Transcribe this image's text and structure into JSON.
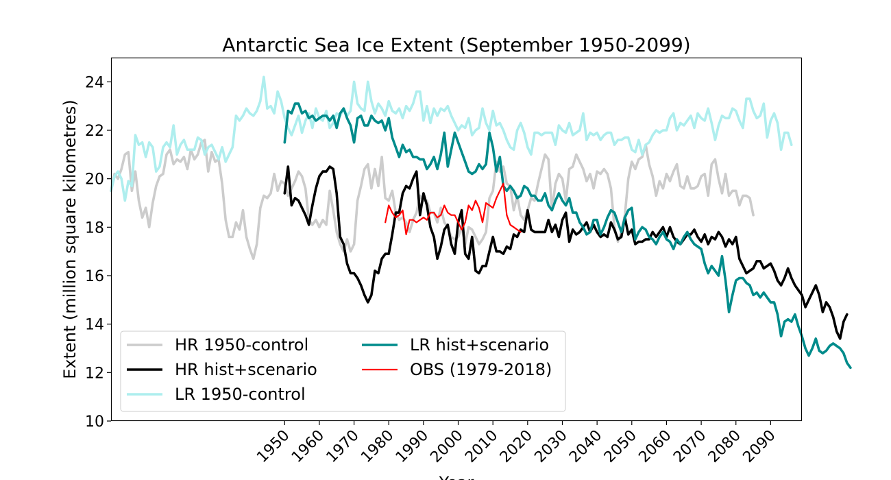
{
  "chart_data": {
    "type": "line",
    "title": "Antarctic Sea Ice Extent (September 1950-2099)",
    "xlabel": "Year",
    "ylabel": "Extent (million square kilometres)",
    "xlim": [
      1900,
      2099
    ],
    "ylim": [
      10,
      25
    ],
    "xticks": [
      1950,
      1960,
      1970,
      1980,
      1990,
      2000,
      2010,
      2020,
      2030,
      2040,
      2050,
      2060,
      2070,
      2080,
      2090
    ],
    "yticks": [
      10,
      12,
      14,
      16,
      18,
      20,
      22,
      24
    ],
    "grid": false,
    "legend_position": "lower-left",
    "series": [
      {
        "name": "HR 1950-control",
        "color": "#cccccc",
        "start_year": 1900,
        "values": [
          19.5,
          20.2,
          20.0,
          20.4,
          21.0,
          21.1,
          19.5,
          20.3,
          19.1,
          18.4,
          18.8,
          18.0,
          19.0,
          19.7,
          20.1,
          20.2,
          21.0,
          21.2,
          20.6,
          20.8,
          20.7,
          20.9,
          20.4,
          21.2,
          20.8,
          21.0,
          21.5,
          21.6,
          20.3,
          21.1,
          20.7,
          20.8,
          19.8,
          18.3,
          17.6,
          17.6,
          18.2,
          17.9,
          18.7,
          17.6,
          17.1,
          16.7,
          17.3,
          18.8,
          19.3,
          19.2,
          19.4,
          20.2,
          19.5,
          19.9,
          19.8,
          19.3,
          19.6,
          19.9,
          20.3,
          20.1,
          19.6,
          18.3,
          18.1,
          18.3,
          18.0,
          18.3,
          18.1,
          19.5,
          18.7,
          17.8,
          17.3,
          17.0,
          17.5,
          17.0,
          17.3,
          19.1,
          19.7,
          20.4,
          20.6,
          19.6,
          20.4,
          19.7,
          20.9,
          19.2,
          19.1,
          19.5,
          18.6,
          18.3,
          18.4,
          18.2,
          17.8,
          18.3,
          18.6,
          19.3,
          19.1,
          19.1,
          18.6,
          18.6,
          18.2,
          18.8,
          18.2,
          18.0,
          17.6,
          17.5,
          17.6,
          18.0,
          17.3,
          18.0,
          17.9,
          17.6,
          17.3,
          17.5,
          17.8,
          19.2,
          19.5,
          20.7,
          20.3,
          20.5,
          19.8,
          19.7,
          18.7,
          19.3,
          18.5,
          18.3,
          18.7,
          19.2,
          19.1,
          19.8,
          20.4,
          21.0,
          20.8,
          18.7,
          19.8,
          20.2,
          20.0,
          19.1,
          20.4,
          20.5,
          21.0,
          20.7,
          20.4,
          19.9,
          20.2,
          19.6,
          20.3,
          20.2,
          20.4,
          20.2,
          19.6,
          18.0,
          17.4,
          17.8,
          18.5,
          20.0,
          20.7,
          20.4,
          20.8,
          20.9,
          21.4,
          20.6,
          20.1,
          19.3,
          19.9,
          19.6,
          20.2,
          19.9,
          20.3,
          20.6,
          19.7,
          19.6,
          20.1,
          19.6,
          19.6,
          19.7,
          20.1,
          20.2,
          19.3,
          20.6,
          20.8,
          20.0,
          19.4,
          20.2,
          19.3,
          19.5,
          19.5,
          18.9,
          19.3,
          19.3,
          19.2,
          18.5
        ]
      },
      {
        "name": "HR hist+scenario",
        "color": "#000000",
        "start_year": 1950,
        "values": [
          19.4,
          20.5,
          18.9,
          19.2,
          19.1,
          18.8,
          18.5,
          18.1,
          18.9,
          19.6,
          20.1,
          20.3,
          20.3,
          20.5,
          20.4,
          19.4,
          17.6,
          17.3,
          16.5,
          16.1,
          16.1,
          15.9,
          15.6,
          15.2,
          14.9,
          15.2,
          16.2,
          16.1,
          16.7,
          16.9,
          16.9,
          17.7,
          18.6,
          18.6,
          19.4,
          19.7,
          19.6,
          20.0,
          20.3,
          18.5,
          19.4,
          18.9,
          18.0,
          17.6,
          16.7,
          17.2,
          17.9,
          18.1,
          17.3,
          16.9,
          18.2,
          18.7,
          16.9,
          16.7,
          17.6,
          16.2,
          16.1,
          16.4,
          16.4,
          17.0,
          17.6,
          17.0,
          17.0,
          16.9,
          17.2,
          17.1,
          17.7,
          17.6,
          17.9,
          17.8,
          18.7,
          17.9,
          17.8,
          17.8,
          17.8,
          17.8,
          18.3,
          17.8,
          18.1,
          17.6,
          18.3,
          18.6,
          17.4,
          17.9,
          17.7,
          17.8,
          18.0,
          18.2,
          17.8,
          18.1,
          17.8,
          17.6,
          17.7,
          17.6,
          18.2,
          17.9,
          17.5,
          17.6,
          18.4,
          17.7,
          17.9,
          17.3,
          17.4,
          17.4,
          17.5,
          17.5,
          17.8,
          17.6,
          17.8,
          18.0,
          17.6,
          18.0,
          17.6,
          17.4,
          17.3,
          17.5,
          17.7,
          17.7,
          17.9,
          17.6,
          17.4,
          17.7,
          17.3,
          17.6,
          17.5,
          17.8,
          17.6,
          17.2,
          17.5,
          17.3,
          17.6,
          16.7,
          16.4,
          16.1,
          16.2,
          16.3,
          16.6,
          16.6,
          16.3,
          16.4,
          16.5,
          16.2,
          15.8,
          15.6,
          15.9,
          16.3,
          15.9,
          15.6,
          15.4,
          15.2,
          14.7,
          15.0,
          15.3,
          15.6,
          15.2,
          14.5,
          14.9,
          14.7,
          14.3,
          13.7,
          13.4,
          14.1,
          14.4
        ]
      },
      {
        "name": "LR 1950-control",
        "color": "#aeeeee",
        "start_year": 1900,
        "values": [
          19.5,
          20.1,
          20.3,
          20.0,
          19.1,
          19.9,
          19.7,
          21.8,
          21.4,
          21.5,
          20.9,
          21.5,
          21.3,
          20.3,
          20.5,
          21.3,
          21.5,
          21.3,
          22.2,
          21.0,
          21.4,
          21.6,
          21.2,
          21.2,
          21.2,
          21.7,
          21.6,
          21.0,
          21.3,
          21.4,
          21.1,
          20.8,
          21.3,
          20.7,
          21.0,
          21.3,
          22.6,
          22.4,
          22.6,
          22.9,
          22.7,
          22.6,
          22.8,
          23.2,
          24.2,
          22.9,
          23.0,
          22.7,
          23.6,
          23.2,
          22.5,
          22.1,
          21.8,
          22.2,
          22.6,
          21.9,
          22.4,
          22.7,
          22.1,
          22.9,
          22.5,
          22.4,
          22.8,
          22.1,
          22.3,
          22.7,
          22.6,
          22.9,
          22.6,
          22.8,
          24.0,
          23.1,
          22.9,
          22.8,
          24.0,
          23.2,
          22.7,
          23.1,
          22.9,
          22.6,
          23.2,
          22.8,
          22.7,
          22.9,
          22.5,
          23.0,
          22.8,
          23.1,
          23.6,
          23.6,
          22.4,
          23.0,
          22.3,
          22.9,
          22.6,
          22.9,
          22.8,
          23.0,
          22.6,
          22.3,
          22.0,
          22.2,
          22.1,
          22.5,
          21.8,
          22.0,
          22.1,
          22.9,
          22.3,
          22.0,
          22.8,
          22.2,
          22.3,
          22.0,
          21.6,
          21.3,
          21.2,
          22.0,
          22.3,
          21.9,
          21.3,
          21.0,
          21.9,
          21.9,
          21.8,
          21.9,
          21.9,
          21.9,
          21.4,
          22.2,
          22.0,
          21.9,
          22.3,
          21.8,
          21.9,
          22.0,
          22.7,
          21.6,
          21.9,
          21.8,
          21.9,
          21.6,
          21.8,
          21.9,
          21.9,
          21.4,
          21.6,
          21.6,
          21.7,
          21.7,
          21.2,
          21.1,
          21.6,
          21.0,
          21.4,
          21.5,
          21.8,
          22.0,
          21.9,
          22.0,
          22.0,
          22.5,
          22.7,
          22.0,
          22.3,
          22.2,
          22.4,
          22.6,
          22.1,
          22.7,
          22.5,
          22.4,
          22.9,
          22.3,
          21.6,
          22.2,
          22.6,
          22.5,
          22.5,
          22.9,
          22.8,
          22.4,
          22.1,
          23.3,
          23.3,
          22.8,
          22.5,
          22.6,
          23.1,
          21.7,
          22.4,
          22.7,
          22.3,
          21.2,
          21.9,
          21.9,
          21.4
        ]
      },
      {
        "name": "LR hist+scenario",
        "color": "#008b8b",
        "start_year": 1950,
        "values": [
          21.5,
          22.8,
          22.7,
          23.1,
          23.1,
          22.7,
          22.8,
          22.5,
          22.6,
          22.4,
          22.5,
          22.6,
          22.6,
          22.4,
          22.6,
          22.1,
          22.7,
          22.9,
          22.5,
          22.2,
          21.5,
          22.5,
          22.6,
          22.2,
          22.2,
          22.6,
          22.4,
          22.3,
          22.4,
          22.0,
          22.5,
          21.7,
          21.3,
          20.9,
          21.4,
          21.1,
          21.2,
          20.9,
          20.9,
          20.8,
          20.8,
          20.4,
          20.6,
          20.9,
          20.4,
          21.0,
          21.9,
          20.5,
          21.2,
          21.9,
          21.5,
          21.1,
          20.7,
          20.3,
          20.2,
          20.3,
          20.6,
          20.4,
          20.6,
          21.9,
          21.3,
          20.3,
          20.9,
          19.7,
          19.5,
          19.7,
          19.5,
          19.2,
          19.3,
          19.7,
          19.6,
          19.3,
          19.3,
          19.1,
          19.1,
          19.4,
          18.9,
          18.7,
          19.1,
          19.4,
          19.1,
          18.9,
          19.2,
          18.6,
          18.6,
          18.2,
          18.0,
          17.7,
          17.8,
          18.3,
          18.3,
          17.7,
          18.0,
          18.4,
          18.7,
          18.6,
          18.2,
          17.8,
          18.4,
          18.7,
          18.8,
          17.5,
          17.8,
          18.0,
          17.9,
          17.6,
          17.5,
          17.3,
          17.6,
          17.8,
          17.5,
          17.4,
          17.1,
          17.5,
          17.3,
          17.6,
          17.8,
          17.5,
          17.3,
          17.2,
          17.1,
          16.5,
          16.1,
          16.4,
          16.2,
          16.0,
          16.8,
          15.8,
          14.5,
          15.2,
          15.8,
          15.9,
          15.9,
          15.7,
          15.6,
          15.2,
          15.3,
          15.1,
          15.3,
          15.1,
          14.9,
          14.9,
          14.4,
          13.5,
          14.1,
          14.2,
          14.1,
          14.4,
          13.9,
          13.5,
          13.0,
          12.7,
          13.0,
          13.4,
          12.9,
          12.8,
          12.9,
          13.1,
          13.2,
          13.1,
          13.0,
          12.8,
          12.4,
          12.2
        ]
      },
      {
        "name": "OBS (1979-2018)",
        "color": "#ff0000",
        "start_year": 1979,
        "values": [
          18.2,
          18.9,
          18.6,
          18.4,
          18.5,
          18.7,
          17.7,
          18.3,
          18.3,
          18.2,
          18.3,
          18.4,
          18.3,
          18.6,
          18.6,
          18.4,
          18.5,
          18.9,
          18.6,
          18.5,
          18.5,
          18.2,
          17.9,
          18.2,
          18.9,
          18.7,
          19.1,
          18.8,
          18.2,
          19.0,
          18.9,
          18.8,
          19.2,
          19.5,
          19.8,
          18.5,
          18.1,
          18.0,
          17.9,
          17.8
        ]
      }
    ]
  }
}
